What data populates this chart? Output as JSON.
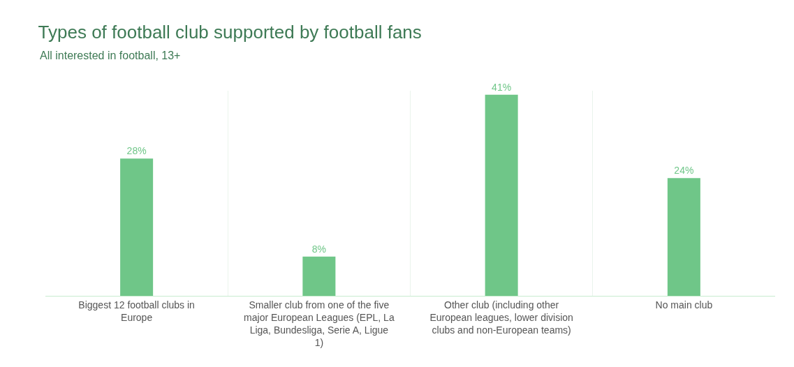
{
  "chart_data": {
    "type": "bar",
    "title": "Types of football club supported by football fans",
    "subtitle": "All interested in football, 13+",
    "categories": [
      "Biggest 12 football clubs in Europe",
      "Smaller club from one of the five major European Leagues (EPL, La Liga, Bundesliga, Serie A, Ligue 1)",
      "Other club (including other European leagues, lower division clubs and non-European teams)",
      "No main club"
    ],
    "values": [
      28,
      8,
      41,
      24
    ],
    "color": "#6fc688",
    "data_labels": true,
    "value_labels": [
      "28%",
      "8%",
      "41%",
      "24%"
    ],
    "grid": "x",
    "tick_labels": "x"
  }
}
